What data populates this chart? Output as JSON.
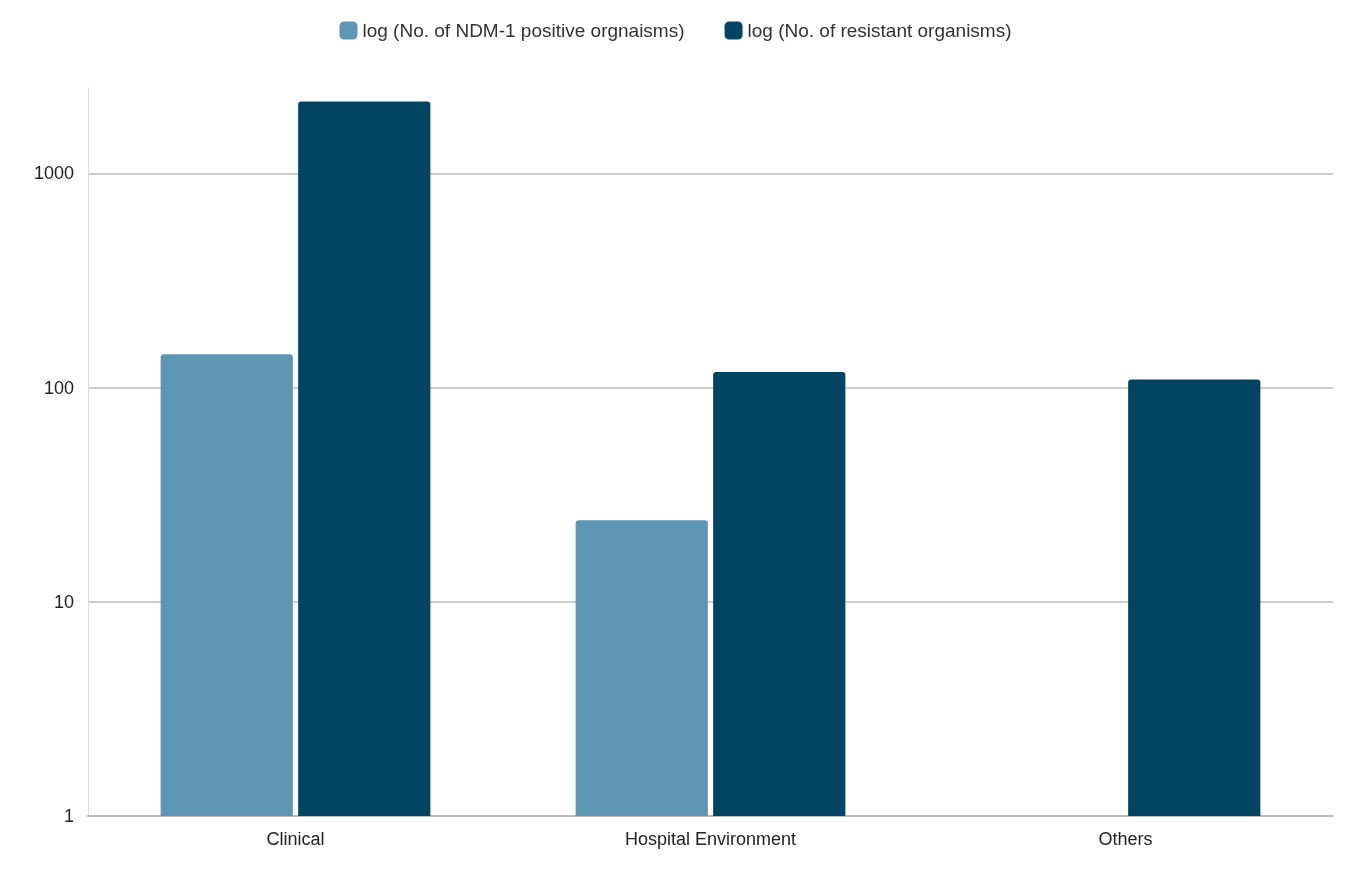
{
  "chart_data": {
    "type": "bar",
    "categories": [
      "Clinical",
      "Hospital Environment",
      "Others"
    ],
    "series": [
      {
        "name": "log (No. of NDM-1 positive orgnaisms)",
        "color": "#5d95b2",
        "values": [
          143,
          24,
          null
        ]
      },
      {
        "name": "log (No. of resistant organisms)",
        "color": "#024462",
        "values": [
          2160,
          118,
          109
        ]
      }
    ],
    "log": "y",
    "ylim": [
      1,
      2500
    ],
    "yticks": [
      1,
      10,
      100,
      1000
    ],
    "grid": "y",
    "legend": "top"
  }
}
